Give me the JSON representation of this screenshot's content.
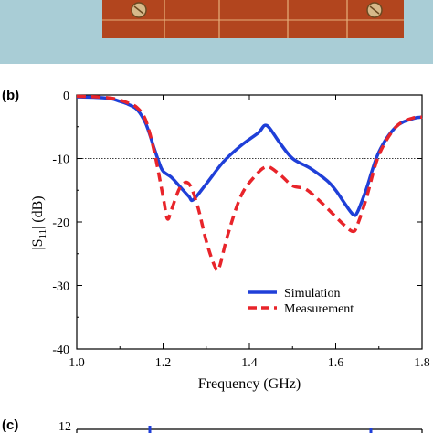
{
  "photo": {
    "background_color": "#a9cdd6",
    "board_color": "#b2451e"
  },
  "panels": {
    "b": "(b)",
    "c": "(c)"
  },
  "chart_data": [
    {
      "type": "line",
      "panel": "(b)",
      "xlabel": "Frequency (GHz)",
      "ylabel": "|S11| (dB)",
      "xlim": [
        1.0,
        1.8
      ],
      "ylim": [
        -40,
        0
      ],
      "xticks": [
        "1.0",
        "1.2",
        "1.4",
        "1.6",
        "1.8"
      ],
      "yticks": [
        "0",
        "-10",
        "-20",
        "-30",
        "-40"
      ],
      "grid": false,
      "legend_position": "lower-right",
      "reference_line": {
        "y": -10,
        "style": "dotted"
      },
      "series": [
        {
          "name": "Simulation",
          "color": "#1f3fd8",
          "style": "solid",
          "x": [
            1.0,
            1.05,
            1.08,
            1.1,
            1.12,
            1.14,
            1.16,
            1.18,
            1.19,
            1.2,
            1.22,
            1.24,
            1.26,
            1.27,
            1.3,
            1.34,
            1.38,
            1.42,
            1.44,
            1.47,
            1.5,
            1.54,
            1.58,
            1.6,
            1.62,
            1.64,
            1.65,
            1.67,
            1.7,
            1.74,
            1.78,
            1.8
          ],
          "y": [
            -0.3,
            -0.4,
            -0.6,
            -1.0,
            -1.5,
            -2.3,
            -4.5,
            -8.5,
            -10.5,
            -12.0,
            -13.0,
            -14.5,
            -16.0,
            -16.5,
            -14.0,
            -10.5,
            -8.0,
            -6.0,
            -4.8,
            -7.5,
            -10.0,
            -11.5,
            -13.5,
            -15.0,
            -17.0,
            -18.8,
            -18.5,
            -15.0,
            -9.0,
            -5.0,
            -3.7,
            -3.5
          ]
        },
        {
          "name": "Measurement",
          "color": "#e8242a",
          "style": "dashed",
          "x": [
            1.0,
            1.05,
            1.08,
            1.1,
            1.12,
            1.14,
            1.16,
            1.18,
            1.2,
            1.21,
            1.22,
            1.24,
            1.26,
            1.28,
            1.3,
            1.32,
            1.33,
            1.35,
            1.38,
            1.41,
            1.44,
            1.47,
            1.5,
            1.53,
            1.56,
            1.59,
            1.62,
            1.64,
            1.65,
            1.67,
            1.7,
            1.74,
            1.78,
            1.8
          ],
          "y": [
            -0.2,
            -0.3,
            -0.5,
            -0.8,
            -1.3,
            -2.0,
            -4.0,
            -9.0,
            -16.0,
            -19.5,
            -18.0,
            -14.5,
            -14.0,
            -17.5,
            -23.0,
            -27.0,
            -27.2,
            -22.0,
            -16.0,
            -13.0,
            -11.3,
            -12.5,
            -14.3,
            -14.8,
            -16.5,
            -18.5,
            -20.5,
            -21.5,
            -20.5,
            -16.5,
            -9.5,
            -5.0,
            -3.6,
            -3.5
          ]
        }
      ]
    },
    {
      "type": "line",
      "panel": "(c)",
      "partial": true,
      "yticks": [
        "12"
      ],
      "series": [
        {
          "name": "",
          "color": "#1f3fd8",
          "style": "solid"
        }
      ]
    }
  ]
}
